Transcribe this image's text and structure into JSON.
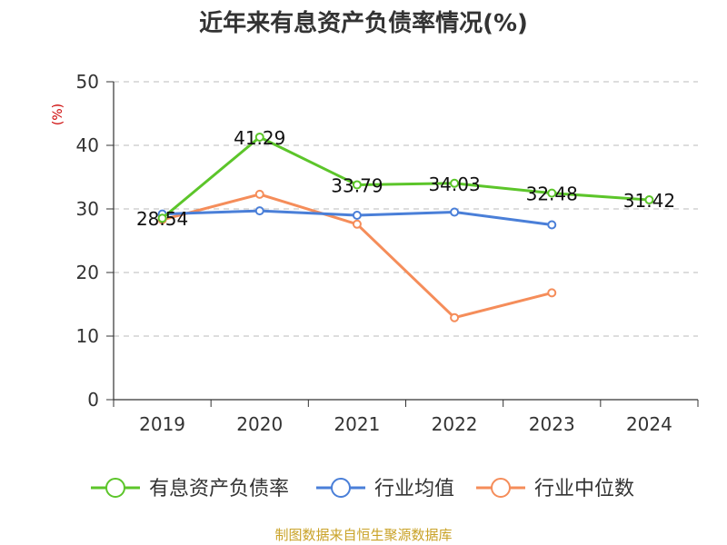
{
  "chart_data": {
    "type": "line",
    "title": "近年来有息资产负债率情况(%)",
    "ylabel": "(%)",
    "xlabel": "",
    "categories": [
      "2019",
      "2020",
      "2021",
      "2022",
      "2023",
      "2024"
    ],
    "ylim": [
      0,
      50
    ],
    "yticks": [
      0,
      10,
      20,
      30,
      40,
      50
    ],
    "grid": true,
    "legend_position": "bottom",
    "series": [
      {
        "name": "有息资产负债率",
        "color": "#5CC52A",
        "values": [
          28.54,
          41.29,
          33.79,
          34.03,
          32.48,
          31.42
        ],
        "labels": [
          "28.54",
          "41.29",
          "33.79",
          "34.03",
          "32.48",
          "31.42"
        ]
      },
      {
        "name": "行业均值",
        "color": "#4A7FD8",
        "values": [
          29.2,
          29.7,
          29.0,
          29.5,
          27.5,
          null
        ]
      },
      {
        "name": "行业中位数",
        "color": "#F58D5A",
        "values": [
          28.3,
          32.3,
          27.6,
          12.9,
          16.8,
          null
        ]
      }
    ]
  },
  "footer": {
    "source": "制图数据来自恒生聚源数据库",
    "source_color": "#C9A227"
  },
  "axis_unit_color": "#CC0000"
}
